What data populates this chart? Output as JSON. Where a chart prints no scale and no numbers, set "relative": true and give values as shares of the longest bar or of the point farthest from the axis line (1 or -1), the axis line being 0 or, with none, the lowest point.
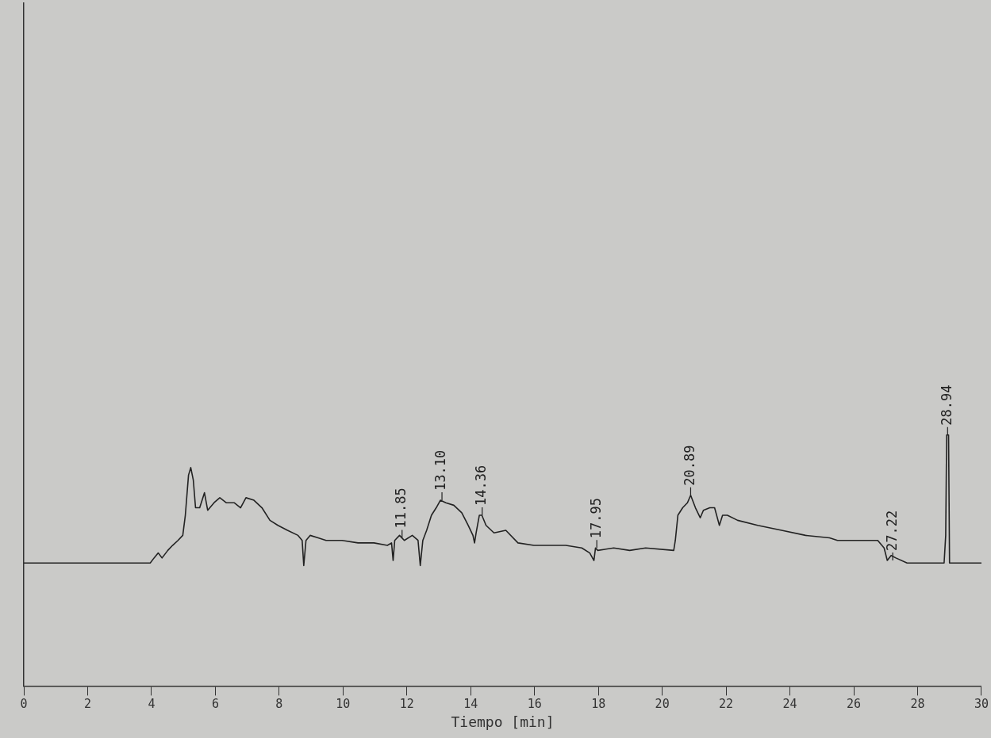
{
  "chart_data": {
    "type": "line",
    "relative": true,
    "xlabel": "Tiempo [min]",
    "xlim": [
      0,
      30
    ],
    "xticks": [
      0,
      2,
      4,
      6,
      8,
      10,
      12,
      14,
      16,
      18,
      20,
      22,
      24,
      26,
      28,
      30
    ],
    "grid": false,
    "legend": false,
    "marker": "none",
    "line_style": "solid",
    "series": [
      {
        "color": "#222222",
        "x": [
          0,
          3.96,
          4.08,
          4.21,
          4.33,
          4.51,
          4.66,
          4.83,
          4.98,
          5.06,
          5.16,
          5.23,
          5.31,
          5.38,
          5.51,
          5.66,
          5.76,
          5.96,
          6.14,
          6.34,
          6.59,
          6.79,
          6.96,
          7.21,
          7.46,
          7.71,
          7.96,
          8.26,
          8.59,
          8.72,
          8.77,
          8.84,
          8.97,
          9.22,
          9.47,
          9.97,
          10.47,
          10.97,
          11.39,
          11.52,
          11.57,
          11.62,
          11.77,
          11.92,
          12.17,
          12.35,
          12.42,
          12.5,
          12.62,
          12.77,
          12.92,
          13.05,
          13.22,
          13.47,
          13.72,
          13.92,
          14.07,
          14.12,
          14.17,
          14.27,
          14.35,
          14.48,
          14.73,
          15.1,
          15.48,
          15.98,
          16.48,
          16.98,
          17.48,
          17.73,
          17.86,
          17.91,
          17.98,
          18.48,
          18.98,
          19.48,
          20.36,
          20.41,
          20.49,
          20.64,
          20.79,
          20.89,
          21.04,
          21.19,
          21.29,
          21.49,
          21.64,
          21.79,
          21.89,
          22.04,
          22.36,
          22.99,
          23.74,
          24.49,
          25.24,
          25.49,
          26.25,
          26.75,
          26.95,
          27.05,
          27.17,
          27.32,
          27.67,
          28.83,
          28.88,
          28.91,
          28.97,
          29.0,
          30
        ],
        "values": [
          0.49,
          0.49,
          0.51,
          0.53,
          0.51,
          0.54,
          0.56,
          0.58,
          0.6,
          0.68,
          0.84,
          0.87,
          0.82,
          0.71,
          0.71,
          0.77,
          0.7,
          0.73,
          0.75,
          0.73,
          0.73,
          0.71,
          0.75,
          0.74,
          0.71,
          0.66,
          0.64,
          0.62,
          0.6,
          0.58,
          0.48,
          0.58,
          0.6,
          0.59,
          0.58,
          0.58,
          0.57,
          0.57,
          0.56,
          0.57,
          0.5,
          0.58,
          0.6,
          0.58,
          0.6,
          0.58,
          0.48,
          0.58,
          0.62,
          0.68,
          0.71,
          0.74,
          0.73,
          0.72,
          0.69,
          0.64,
          0.6,
          0.57,
          0.61,
          0.68,
          0.68,
          0.64,
          0.61,
          0.62,
          0.57,
          0.56,
          0.56,
          0.56,
          0.55,
          0.53,
          0.5,
          0.55,
          0.54,
          0.55,
          0.54,
          0.55,
          0.54,
          0.58,
          0.68,
          0.71,
          0.73,
          0.76,
          0.71,
          0.67,
          0.7,
          0.71,
          0.71,
          0.64,
          0.68,
          0.68,
          0.66,
          0.64,
          0.62,
          0.6,
          0.59,
          0.58,
          0.58,
          0.58,
          0.55,
          0.5,
          0.52,
          0.51,
          0.49,
          0.49,
          0.6,
          1,
          1,
          0.49,
          0.49
        ]
      }
    ],
    "annotations": [
      {
        "text": "11.85",
        "x": 11.85,
        "y": 0.59
      },
      {
        "text": "13.10",
        "x": 13.1,
        "y": 0.74
      },
      {
        "text": "14.36",
        "x": 14.36,
        "y": 0.68
      },
      {
        "text": "17.95",
        "x": 17.95,
        "y": 0.55
      },
      {
        "text": "20.89",
        "x": 20.89,
        "y": 0.76
      },
      {
        "text": "27.22",
        "x": 27.22,
        "y": 0.5
      },
      {
        "text": "28.94",
        "x": 28.94,
        "y": 1
      }
    ]
  }
}
